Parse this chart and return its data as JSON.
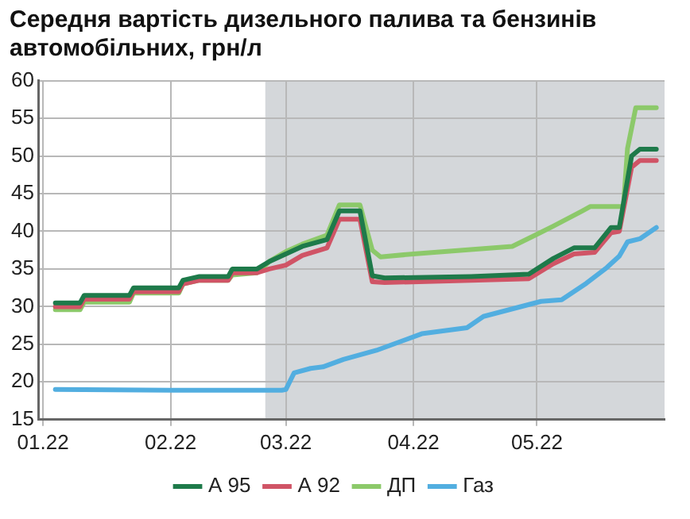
{
  "chart_data": {
    "type": "line",
    "title": "Середня вартість дизельного палива та бензинів автомобільних, грн/л",
    "xlim": [
      "2021-12-31",
      "2022-06-01"
    ],
    "xticks": [
      {
        "value": "2022-01-01",
        "label": "01.22"
      },
      {
        "value": "2022-02-01",
        "label": "02.22"
      },
      {
        "value": "2022-03-01",
        "label": "03.22"
      },
      {
        "value": "2022-04-01",
        "label": "04.22"
      },
      {
        "value": "2022-05-01",
        "label": "05.22"
      }
    ],
    "ylim": [
      15,
      60
    ],
    "yticks": [
      15,
      20,
      25,
      30,
      35,
      40,
      45,
      50,
      55,
      60
    ],
    "grid": true,
    "legend": "bottom",
    "marker": "none",
    "line_style": "solid",
    "bands": [
      {
        "axis": "x",
        "from": "2022-02-24",
        "to": "2022-06-01",
        "color": "#d4d7da"
      }
    ],
    "series": [
      {
        "name": "А 95",
        "color": "#1e7a4a",
        "x": [
          "2022-01-04",
          "2022-01-10",
          "2022-01-11",
          "2022-01-22",
          "2022-01-23",
          "2022-02-03",
          "2022-02-04",
          "2022-02-08",
          "2022-02-15",
          "2022-02-16",
          "2022-02-22",
          "2022-02-25",
          "2022-03-01",
          "2022-03-05",
          "2022-03-11",
          "2022-03-14",
          "2022-03-19",
          "2022-03-22",
          "2022-03-25",
          "2022-04-15",
          "2022-04-29",
          "2022-05-05",
          "2022-05-10",
          "2022-05-15",
          "2022-05-19",
          "2022-05-21",
          "2022-05-24",
          "2022-05-26",
          "2022-05-30"
        ],
        "values": [
          30.5,
          30.5,
          31.5,
          31.5,
          32.5,
          32.5,
          33.5,
          34,
          34,
          35,
          35,
          36,
          37,
          38,
          38.9,
          42.7,
          42.7,
          34.1,
          33.8,
          34,
          34.3,
          36.4,
          37.8,
          37.8,
          40.5,
          40.5,
          50,
          50.9,
          50.9
        ]
      },
      {
        "name": "А 92",
        "color": "#d05466",
        "x": [
          "2022-01-04",
          "2022-01-10",
          "2022-01-11",
          "2022-01-22",
          "2022-01-23",
          "2022-02-03",
          "2022-02-04",
          "2022-02-08",
          "2022-02-15",
          "2022-02-16",
          "2022-02-22",
          "2022-02-25",
          "2022-03-01",
          "2022-03-05",
          "2022-03-11",
          "2022-03-14",
          "2022-03-19",
          "2022-03-22",
          "2022-03-25",
          "2022-04-15",
          "2022-04-29",
          "2022-05-05",
          "2022-05-10",
          "2022-05-15",
          "2022-05-19",
          "2022-05-21",
          "2022-05-24",
          "2022-05-26",
          "2022-05-30"
        ],
        "values": [
          30,
          30,
          31,
          31,
          32,
          32,
          33,
          33.5,
          33.5,
          34.5,
          34.5,
          35,
          35.5,
          36.8,
          37.8,
          41.6,
          41.6,
          33.3,
          33.2,
          33.5,
          33.7,
          35.7,
          37,
          37.2,
          39.8,
          40,
          48.5,
          49.4,
          49.4
        ]
      },
      {
        "name": "ДП",
        "color": "#8cc96a",
        "x": [
          "2022-01-04",
          "2022-01-10",
          "2022-01-11",
          "2022-01-22",
          "2022-01-23",
          "2022-02-03",
          "2022-02-04",
          "2022-02-08",
          "2022-02-15",
          "2022-02-16",
          "2022-02-22",
          "2022-02-25",
          "2022-03-01",
          "2022-03-05",
          "2022-03-11",
          "2022-03-14",
          "2022-03-19",
          "2022-03-22",
          "2022-03-24",
          "2022-04-01",
          "2022-04-25",
          "2022-05-01",
          "2022-05-05",
          "2022-05-12",
          "2022-05-14",
          "2022-05-22",
          "2022-05-23",
          "2022-05-25",
          "2022-05-30"
        ],
        "values": [
          29.6,
          29.6,
          30.6,
          30.6,
          31.8,
          31.8,
          33,
          33.5,
          33.5,
          34.2,
          34.5,
          36,
          37.3,
          38.3,
          39.5,
          43.5,
          43.5,
          37.5,
          36.6,
          37,
          38,
          39.6,
          40.7,
          42.7,
          43.3,
          43.3,
          51,
          56.4,
          56.4
        ]
      },
      {
        "name": "Газ",
        "color": "#52aee0",
        "x": [
          "2022-01-04",
          "2022-02-01",
          "2022-02-28",
          "2022-03-01",
          "2022-03-03",
          "2022-03-07",
          "2022-03-10",
          "2022-03-15",
          "2022-03-23",
          "2022-04-03",
          "2022-04-14",
          "2022-04-18",
          "2022-05-02",
          "2022-05-07",
          "2022-05-13",
          "2022-05-18",
          "2022-05-21",
          "2022-05-23",
          "2022-05-26",
          "2022-05-30"
        ],
        "values": [
          19,
          18.9,
          18.9,
          19,
          21.2,
          21.8,
          22,
          23,
          24.2,
          26.4,
          27.2,
          28.7,
          30.7,
          30.9,
          33.1,
          35.2,
          36.7,
          38.6,
          39,
          40.5
        ]
      }
    ]
  }
}
